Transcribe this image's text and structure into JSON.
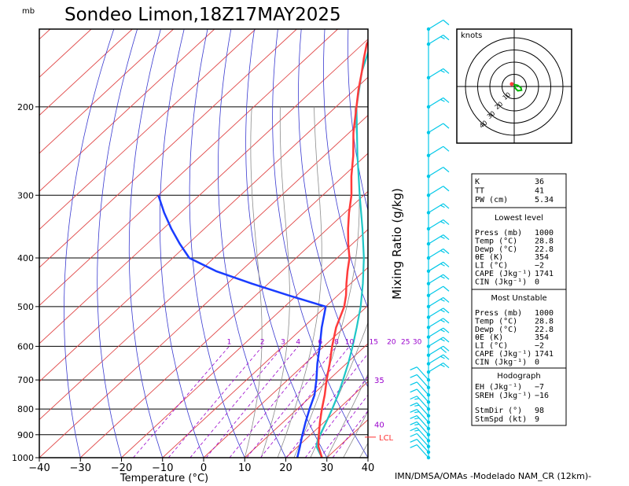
{
  "title": "Sondeo Limon,18Z17MAY2025",
  "credit": "IMN/DMSA/OMAs -Modelado NAM_CR (12km)-",
  "colors": {
    "isotherm": "#e04848",
    "dry_adiabat": "#3a3ad0",
    "moist_adiabat": "#8c8c8c",
    "mixing_ratio": "#9900cc",
    "isobar": "#000000",
    "temperature": "#ff3b3b",
    "dewpoint": "#1a3cff",
    "parcel": "#1fc6c6",
    "wind_barb": "#00c8e8",
    "hodograph_line": "#00b400",
    "lcl": "#ff3030"
  },
  "chart_data": [
    {
      "type": "line",
      "chart_kind": "Skew-T log-P diagram",
      "xlabel": "Temperature (°C)",
      "ylabel": "mb",
      "y_scale": "log (pressure, inverted)",
      "xlim": [
        -40,
        40
      ],
      "ylim": [
        1000,
        140
      ],
      "x_ticks": [
        "−40",
        "−30",
        "−20",
        "−10",
        "0",
        "10",
        "20",
        "30",
        "40"
      ],
      "x_tick_values": [
        -40,
        -30,
        -20,
        -10,
        0,
        10,
        20,
        30,
        40
      ],
      "y_ticks": [
        "200",
        "300",
        "400",
        "500",
        "600",
        "700",
        "800",
        "900",
        "1000"
      ],
      "y_tick_values": [
        200,
        300,
        400,
        500,
        600,
        700,
        800,
        900,
        1000
      ],
      "mixing_ratio_axis_label": "Mixing Ratio (g/kg)",
      "mixing_ratio_labels": [
        "1",
        "2",
        "3",
        "4",
        "6",
        "8",
        "10",
        "15",
        "20",
        "25",
        "30"
      ],
      "mixing_ratio_values": [
        1,
        2,
        3,
        4,
        6,
        8,
        10,
        15,
        20,
        25,
        30
      ],
      "mixing_ratio_label_p": 600,
      "theta_e_labels": [
        "35",
        "40"
      ],
      "lcl_label": "LCL",
      "lcl_pressure": 910,
      "series": [
        {
          "key": "temperature",
          "p": [
            1000,
            950,
            925,
            900,
            850,
            800,
            750,
            700,
            650,
            600,
            550,
            500,
            475,
            450,
            425,
            400,
            375,
            350,
            325,
            300,
            275,
            250,
            225,
            200,
            185,
            170,
            160,
            150,
            140
          ],
          "t": [
            28.8,
            25.0,
            23.5,
            22.0,
            19.0,
            16.0,
            13.0,
            9.5,
            6.0,
            2.0,
            -2.0,
            -5.5,
            -8.0,
            -11.0,
            -14.0,
            -17.0,
            -21.0,
            -25.0,
            -29.0,
            -33.0,
            -38.0,
            -43.0,
            -49.0,
            -55.0,
            -59.0,
            -63.0,
            -66.0,
            -69.0,
            -71.0
          ]
        },
        {
          "key": "dewpoint",
          "p": [
            1000,
            950,
            900,
            850,
            800,
            750,
            700,
            650,
            600,
            550,
            500,
            475,
            450,
            425,
            400,
            375,
            350,
            325,
            300
          ],
          "t": [
            22.8,
            20.5,
            18.0,
            15.5,
            13.0,
            10.5,
            7.0,
            3.0,
            -1.0,
            -5.5,
            -10.0,
            -22.0,
            -34.0,
            -46.0,
            -56.0,
            -62.0,
            -68.0,
            -74.0,
            -80.0
          ]
        },
        {
          "key": "parcel",
          "p": [
            1000,
            950,
            910,
            900,
            850,
            800,
            750,
            700,
            650,
            600,
            550,
            500,
            450,
            400,
            350,
            300,
            250,
            200,
            170,
            150,
            140
          ],
          "t": [
            28.8,
            24.5,
            22.5,
            22.3,
            20.5,
            18.5,
            16.2,
            13.5,
            10.5,
            7.0,
            3.0,
            -1.5,
            -7.0,
            -13.5,
            -21.5,
            -31.0,
            -42.0,
            -55.0,
            -63.0,
            -68.0,
            -71.0
          ]
        }
      ],
      "wind_profile": {
        "p": [
          1000,
          975,
          950,
          925,
          900,
          875,
          850,
          825,
          800,
          775,
          750,
          725,
          700,
          675,
          650,
          625,
          600,
          575,
          550,
          525,
          500,
          475,
          450,
          425,
          400,
          375,
          350,
          325,
          300,
          275,
          250,
          225,
          200,
          175,
          150,
          140
        ],
        "kt": [
          8,
          10,
          12,
          14,
          15,
          16,
          16,
          15,
          14,
          12,
          10,
          10,
          12,
          15,
          17,
          18,
          17,
          16,
          15,
          14,
          13,
          12,
          13,
          14,
          15,
          15,
          14,
          13,
          12,
          11,
          10,
          12,
          14,
          15,
          14,
          12
        ]
      }
    },
    {
      "type": "scatter",
      "chart_kind": "Hodograph",
      "title": "knots",
      "ring_labels": [
        "10",
        "20",
        "30",
        "40"
      ],
      "u": [
        -2.0,
        3.0,
        5.5,
        6.0,
        3.0,
        0.5,
        1.0
      ],
      "v": [
        2.0,
        1.0,
        -1.0,
        -3.0,
        -3.5,
        -1.0,
        0.5
      ]
    }
  ],
  "stats": {
    "indices": [
      {
        "label": "K",
        "value": "36"
      },
      {
        "label": "TT",
        "value": "41"
      },
      {
        "label": "PW (cm)",
        "value": "5.34"
      }
    ],
    "lowest": {
      "title": "Lowest level",
      "rows": [
        {
          "label": "Press (mb)",
          "value": "1000"
        },
        {
          "label": "Temp (°C)",
          "value": "28.8"
        },
        {
          "label": "Dewp (°C)",
          "value": "22.8"
        },
        {
          "label": "θE (K)",
          "value": "354"
        },
        {
          "label": "LI (°C)",
          "value": "−2"
        },
        {
          "label": "CAPE (Jkg⁻¹)",
          "value": "1741"
        },
        {
          "label": "CIN (Jkg⁻¹)",
          "value": "0"
        }
      ]
    },
    "unstable": {
      "title": "Most Unstable",
      "rows": [
        {
          "label": "Press (mb)",
          "value": "1000"
        },
        {
          "label": "Temp (°C)",
          "value": "28.8"
        },
        {
          "label": "Dewp (°C)",
          "value": "22.8"
        },
        {
          "label": "θE (K)",
          "value": "354"
        },
        {
          "label": "LI (°C)",
          "value": "−2"
        },
        {
          "label": "CAPE (Jkg⁻¹)",
          "value": "1741"
        },
        {
          "label": "CIN (Jkg⁻¹)",
          "value": "0"
        }
      ]
    },
    "hodograph": {
      "title": "Hodograph",
      "rows": [
        {
          "label": "EH (Jkg⁻¹)",
          "value": "−7"
        },
        {
          "label": "SREH (Jkg⁻¹)",
          "value": "−16"
        },
        {
          "label": "StmDir (°)",
          "value": "98"
        },
        {
          "label": "StmSpd (kt)",
          "value": "9"
        }
      ]
    }
  }
}
